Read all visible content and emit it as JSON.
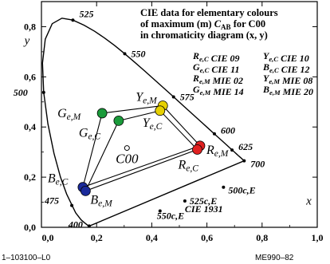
{
  "chart_data": {
    "type": "scatter",
    "title_lines": [
      "CIE data for elementary colours",
      "of maximum (m) C_AB for C00",
      "in chromaticity diagram (x, y)"
    ],
    "xlabel": "x",
    "ylabel": "y",
    "xlim": [
      0.0,
      1.0
    ],
    "ylim": [
      0.0,
      0.9
    ],
    "x_ticks": [
      0.0,
      0.2,
      0.4,
      0.6,
      0.8,
      1.0
    ],
    "y_ticks": [
      0.0,
      0.2,
      0.4,
      0.6,
      0.8
    ],
    "x_tick_labels": [
      "0,0",
      "0,2",
      "0,4",
      "0,6",
      "0,8",
      "1,0"
    ],
    "y_tick_labels": [
      "0,0",
      "0,2",
      "0,4",
      "0,6",
      "0,8"
    ],
    "locus_label": "CIE 1931",
    "spectral_locus": [
      {
        "x": 0.1741,
        "y": 0.005
      },
      {
        "x": 0.1738,
        "y": 0.0049
      },
      {
        "x": 0.1736,
        "y": 0.005
      },
      {
        "x": 0.1726,
        "y": 0.0048
      },
      {
        "x": 0.1714,
        "y": 0.0051
      },
      {
        "x": 0.1689,
        "y": 0.0069
      },
      {
        "x": 0.1644,
        "y": 0.0109
      },
      {
        "x": 0.1566,
        "y": 0.0177
      },
      {
        "x": 0.144,
        "y": 0.0297
      },
      {
        "x": 0.1241,
        "y": 0.0578
      },
      {
        "x": 0.0913,
        "y": 0.1327
      },
      {
        "x": 0.0687,
        "y": 0.2007
      },
      {
        "x": 0.0454,
        "y": 0.295
      },
      {
        "x": 0.0235,
        "y": 0.4127
      },
      {
        "x": 0.0082,
        "y": 0.5384
      },
      {
        "x": 0.0039,
        "y": 0.6548
      },
      {
        "x": 0.0139,
        "y": 0.7502
      },
      {
        "x": 0.0389,
        "y": 0.812
      },
      {
        "x": 0.0743,
        "y": 0.8338
      },
      {
        "x": 0.1142,
        "y": 0.8262
      },
      {
        "x": 0.1547,
        "y": 0.8059
      },
      {
        "x": 0.1929,
        "y": 0.7816
      },
      {
        "x": 0.2296,
        "y": 0.7543
      },
      {
        "x": 0.2658,
        "y": 0.7243
      },
      {
        "x": 0.3016,
        "y": 0.6923
      },
      {
        "x": 0.3373,
        "y": 0.6589
      },
      {
        "x": 0.3731,
        "y": 0.6245
      },
      {
        "x": 0.4087,
        "y": 0.5896
      },
      {
        "x": 0.4441,
        "y": 0.5547
      },
      {
        "x": 0.4788,
        "y": 0.5202
      },
      {
        "x": 0.5125,
        "y": 0.4866
      },
      {
        "x": 0.5448,
        "y": 0.4544
      },
      {
        "x": 0.5752,
        "y": 0.4242
      },
      {
        "x": 0.6029,
        "y": 0.3965
      },
      {
        "x": 0.627,
        "y": 0.3725
      },
      {
        "x": 0.6482,
        "y": 0.3514
      },
      {
        "x": 0.6658,
        "y": 0.334
      },
      {
        "x": 0.6801,
        "y": 0.3197
      },
      {
        "x": 0.6915,
        "y": 0.3083
      },
      {
        "x": 0.7006,
        "y": 0.2993
      },
      {
        "x": 0.7079,
        "y": 0.292
      },
      {
        "x": 0.714,
        "y": 0.2859
      },
      {
        "x": 0.719,
        "y": 0.2809
      },
      {
        "x": 0.723,
        "y": 0.277
      },
      {
        "x": 0.726,
        "y": 0.274
      },
      {
        "x": 0.7283,
        "y": 0.2717
      },
      {
        "x": 0.73,
        "y": 0.27
      },
      {
        "x": 0.7311,
        "y": 0.2689
      },
      {
        "x": 0.732,
        "y": 0.268
      },
      {
        "x": 0.7327,
        "y": 0.2673
      },
      {
        "x": 0.7334,
        "y": 0.2666
      },
      {
        "x": 0.734,
        "y": 0.266
      },
      {
        "x": 0.7344,
        "y": 0.2656
      },
      {
        "x": 0.7346,
        "y": 0.2654
      },
      {
        "x": 0.7347,
        "y": 0.2653
      }
    ],
    "wavelength_labels": [
      {
        "text": "400",
        "x": 0.173,
        "y": 0.005
      },
      {
        "text": "475",
        "x": 0.11,
        "y": 0.087
      },
      {
        "text": "500",
        "x": 0.008,
        "y": 0.538
      },
      {
        "text": "525",
        "x": 0.114,
        "y": 0.826
      },
      {
        "text": "550",
        "x": 0.302,
        "y": 0.692
      },
      {
        "text": "575",
        "x": 0.479,
        "y": 0.52
      },
      {
        "text": "600",
        "x": 0.627,
        "y": 0.373
      },
      {
        "text": "625",
        "x": 0.691,
        "y": 0.308
      },
      {
        "text": "700",
        "x": 0.735,
        "y": 0.265
      },
      {
        "text": "500c,E",
        "x": 0.66,
        "y": 0.16
      },
      {
        "text": "525c,E",
        "x": 0.52,
        "y": 0.105
      },
      {
        "text": "550c,E",
        "x": 0.43,
        "y": 0.065
      }
    ],
    "white_point": {
      "label": "C00",
      "x": 0.3101,
      "y": 0.3162
    },
    "series": [
      {
        "name": "G",
        "color": "#1a9a3a",
        "points": [
          {
            "label": "Ge,M",
            "x": 0.22,
            "y": 0.455
          },
          {
            "label": "Ge,C",
            "x": 0.28,
            "y": 0.425
          }
        ]
      },
      {
        "name": "Y",
        "color": "#e6d000",
        "points": [
          {
            "label": "Ye,M",
            "x": 0.44,
            "y": 0.485
          },
          {
            "label": "Ye,C",
            "x": 0.43,
            "y": 0.465
          }
        ]
      },
      {
        "name": "R",
        "color": "#e02020",
        "points": [
          {
            "label": "Re,M",
            "x": 0.575,
            "y": 0.325
          },
          {
            "label": "Re,C",
            "x": 0.565,
            "y": 0.31
          }
        ]
      },
      {
        "name": "B",
        "color": "#1a2a9a",
        "points": [
          {
            "label": "Be,C",
            "x": 0.15,
            "y": 0.16
          },
          {
            "label": "Be,M",
            "x": 0.16,
            "y": 0.145
          }
        ]
      }
    ],
    "legend": [
      [
        "Re,C CIE 09",
        "Ye,C CIE 10"
      ],
      [
        "Ge,C CIE 11",
        "Be,C CIE 12"
      ],
      [
        "Re,M MIE 02",
        "Ye,M MIE 08"
      ],
      [
        "Ge,M MIE 14",
        "Be,M MIE 20"
      ]
    ]
  },
  "footer": {
    "left": "1–103100–L0",
    "right": "ME990–82"
  }
}
